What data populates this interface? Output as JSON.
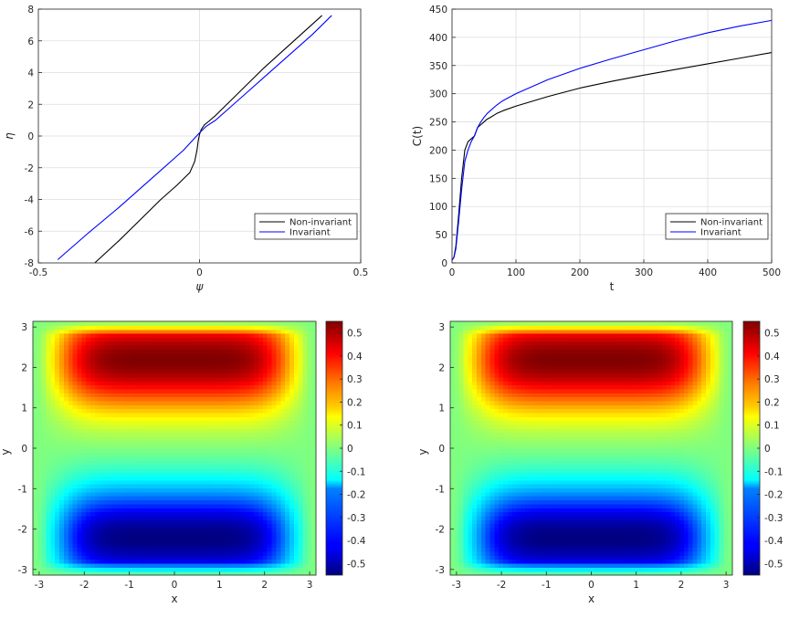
{
  "chart_data": [
    {
      "type": "line",
      "title": "",
      "xlabel": "ψ",
      "ylabel": "η",
      "xlim": [
        -0.5,
        0.5
      ],
      "ylim": [
        -8,
        8
      ],
      "x_ticks": [
        -0.5,
        0,
        0.5
      ],
      "y_ticks": [
        -8,
        -6,
        -4,
        -2,
        0,
        2,
        4,
        6,
        8
      ],
      "grid": true,
      "legend_position": "bottom-right",
      "series": [
        {
          "name": "Non-invariant",
          "color": "#000000",
          "x": [
            -0.325,
            -0.25,
            -0.18,
            -0.12,
            -0.07,
            -0.03,
            -0.015,
            -0.008,
            -0.004,
            0.0,
            0.005,
            0.015,
            0.03,
            0.05,
            0.09,
            0.14,
            0.2,
            0.26,
            0.32,
            0.38
          ],
          "y": [
            -8.0,
            -6.6,
            -5.2,
            -4.0,
            -3.1,
            -2.3,
            -1.6,
            -0.9,
            -0.3,
            0.1,
            0.4,
            0.7,
            0.95,
            1.3,
            2.1,
            3.1,
            4.3,
            5.4,
            6.5,
            7.6
          ]
        },
        {
          "name": "Invariant",
          "color": "#0000ff",
          "x": [
            -0.44,
            -0.35,
            -0.25,
            -0.15,
            -0.05,
            0.0,
            0.02,
            0.05,
            0.1,
            0.15,
            0.2,
            0.25,
            0.3,
            0.35,
            0.41
          ],
          "y": [
            -7.8,
            -6.2,
            -4.5,
            -2.7,
            -0.9,
            0.2,
            0.6,
            1.0,
            1.9,
            2.8,
            3.7,
            4.6,
            5.5,
            6.4,
            7.6
          ]
        }
      ]
    },
    {
      "type": "line",
      "title": "",
      "xlabel": "t",
      "ylabel": "C(t)",
      "xlim": [
        0,
        500
      ],
      "ylim": [
        0,
        450
      ],
      "x_ticks": [
        0,
        100,
        200,
        300,
        400,
        500
      ],
      "y_ticks": [
        0,
        50,
        100,
        150,
        200,
        250,
        300,
        350,
        400,
        450
      ],
      "grid": true,
      "legend_position": "bottom-right",
      "series": [
        {
          "name": "Non-invariant",
          "color": "#000000",
          "x": [
            0,
            3,
            6,
            10,
            15,
            20,
            25,
            30,
            35,
            40,
            45,
            50,
            55,
            60,
            70,
            80,
            100,
            150,
            200,
            250,
            300,
            350,
            400,
            450,
            500
          ],
          "y": [
            5,
            10,
            30,
            80,
            150,
            200,
            215,
            220,
            225,
            240,
            245,
            250,
            255,
            258,
            265,
            270,
            278,
            295,
            310,
            322,
            333,
            343,
            353,
            363,
            373
          ]
        },
        {
          "name": "Invariant",
          "color": "#0000ff",
          "x": [
            0,
            3,
            6,
            10,
            15,
            20,
            25,
            30,
            35,
            40,
            45,
            50,
            55,
            60,
            70,
            80,
            100,
            150,
            200,
            250,
            300,
            350,
            400,
            450,
            500
          ],
          "y": [
            5,
            10,
            25,
            70,
            130,
            180,
            200,
            215,
            225,
            240,
            250,
            258,
            265,
            270,
            280,
            288,
            300,
            325,
            345,
            362,
            378,
            394,
            408,
            420,
            430
          ]
        }
      ]
    },
    {
      "type": "heatmap",
      "title": "",
      "xlabel": "x",
      "ylabel": "y",
      "xlim": [
        -3.14,
        3.14
      ],
      "ylim": [
        -3.14,
        3.14
      ],
      "x_ticks": [
        -3,
        -2,
        -1,
        0,
        1,
        2,
        3
      ],
      "y_ticks": [
        -3,
        -2,
        -1,
        0,
        1,
        2,
        3
      ],
      "colormap": "jet",
      "clim": [
        -0.55,
        0.55
      ],
      "colorbar_ticks": [
        -0.5,
        -0.4,
        -0.3,
        -0.2,
        -0.1,
        0,
        0.1,
        0.2,
        0.3,
        0.4,
        0.5
      ],
      "max_value": 0.55,
      "min_value": -0.55,
      "max_location": [
        0.0,
        2.2
      ],
      "min_location": [
        0.0,
        -2.2
      ]
    },
    {
      "type": "heatmap",
      "title": "",
      "xlabel": "x",
      "ylabel": "y",
      "xlim": [
        -3.14,
        3.14
      ],
      "ylim": [
        -3.14,
        3.14
      ],
      "x_ticks": [
        -3,
        -2,
        -1,
        0,
        1,
        2,
        3
      ],
      "y_ticks": [
        -3,
        -2,
        -1,
        0,
        1,
        2,
        3
      ],
      "colormap": "jet",
      "clim": [
        -0.55,
        0.55
      ],
      "colorbar_ticks": [
        -0.5,
        -0.4,
        -0.3,
        -0.2,
        -0.1,
        0,
        0.1,
        0.2,
        0.3,
        0.4,
        0.5
      ],
      "max_value": 0.55,
      "min_value": -0.55,
      "max_location": [
        0.0,
        2.2
      ],
      "min_location": [
        0.0,
        -2.2
      ]
    }
  ]
}
